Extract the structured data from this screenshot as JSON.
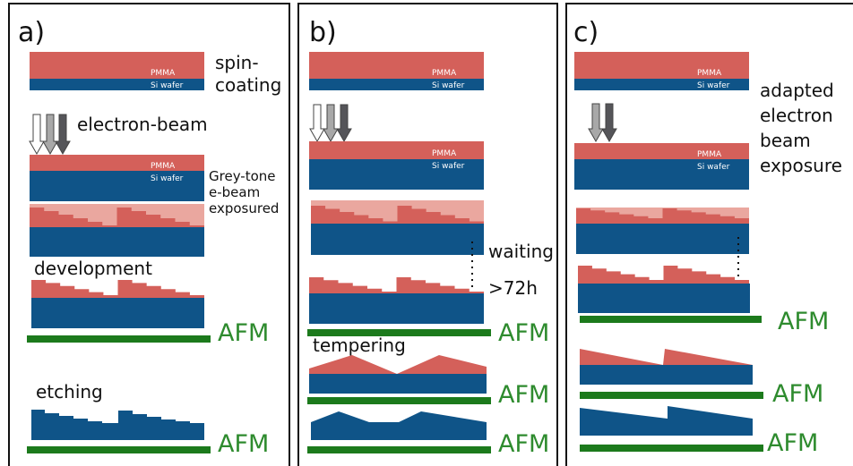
{
  "panels": [
    {
      "label": "a)",
      "texts": [
        "spin-",
        "coating",
        "PMMA",
        "Si wafer",
        "electron-beam",
        "PMMA",
        "Si wafer",
        "Grey-tone",
        "e-beam",
        "exposured",
        "development",
        "AFM",
        "etching",
        "AFM"
      ]
    },
    {
      "label": "b)",
      "texts": [
        "PMMA",
        "Si wafer",
        "PMMA",
        "Si wafer",
        "waiting",
        ">72h",
        "AFM",
        "tempering",
        "AFM",
        "AFM"
      ]
    },
    {
      "label": "c)",
      "texts": [
        "PMMA",
        "Si wafer",
        "adapted",
        "electron",
        "beam",
        "exposure",
        "PMMA",
        "Si wafer",
        "AFM",
        "AFM",
        "AFM"
      ]
    }
  ]
}
